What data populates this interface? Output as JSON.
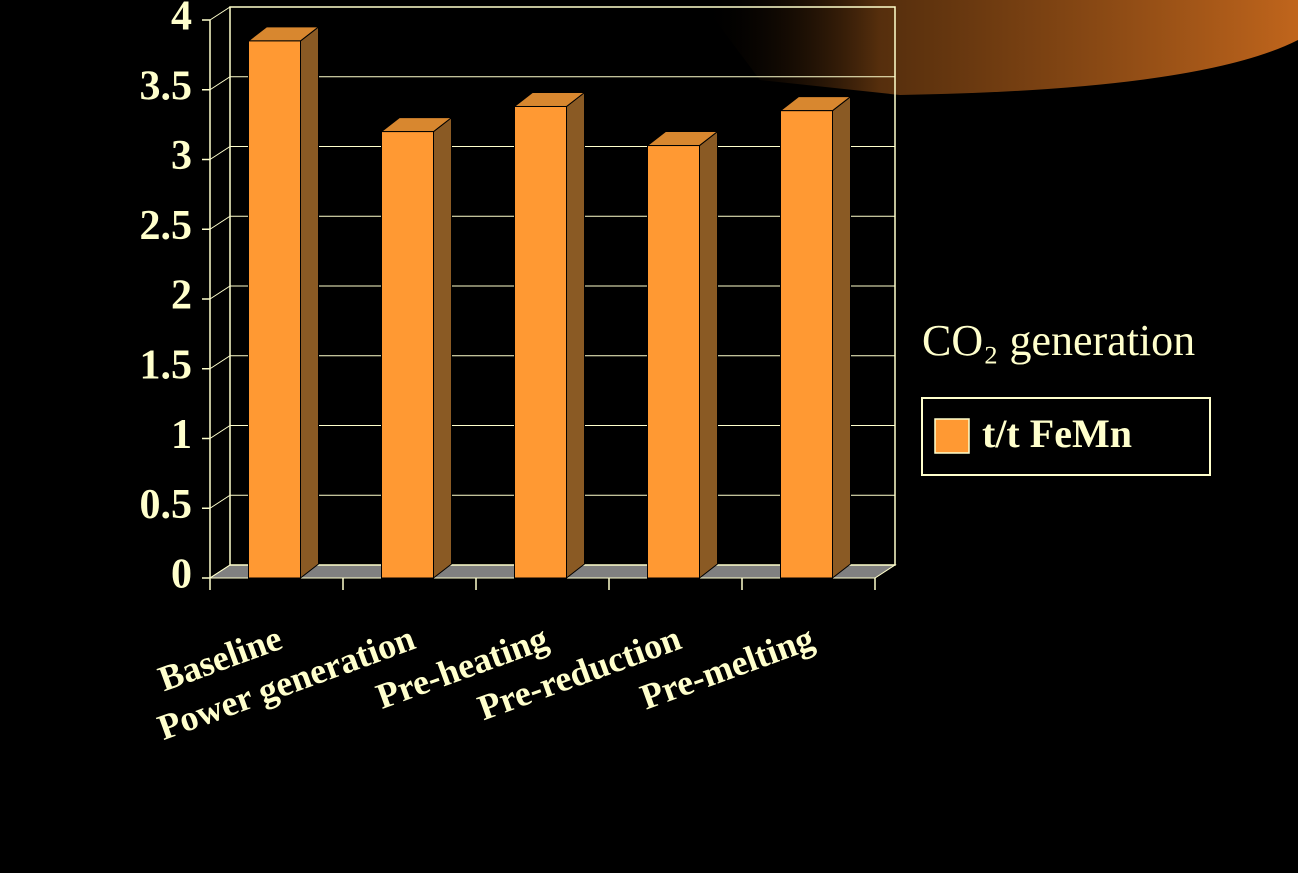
{
  "chart_data": {
    "type": "bar3d",
    "title": "CO₂ generation",
    "categories": [
      "Baseline",
      "Power generation",
      "Pre-heating",
      "Pre-reduction",
      "Pre-melting"
    ],
    "series": [
      {
        "name": "t/t FeMn",
        "color": "#ff9933",
        "values": [
          3.85,
          3.2,
          3.38,
          3.1,
          3.35
        ]
      }
    ],
    "ylim": [
      0,
      4
    ],
    "yticks": [
      0,
      0.5,
      1,
      1.5,
      2,
      2.5,
      3,
      3.5,
      4
    ],
    "grid": true,
    "legend": "right"
  }
}
